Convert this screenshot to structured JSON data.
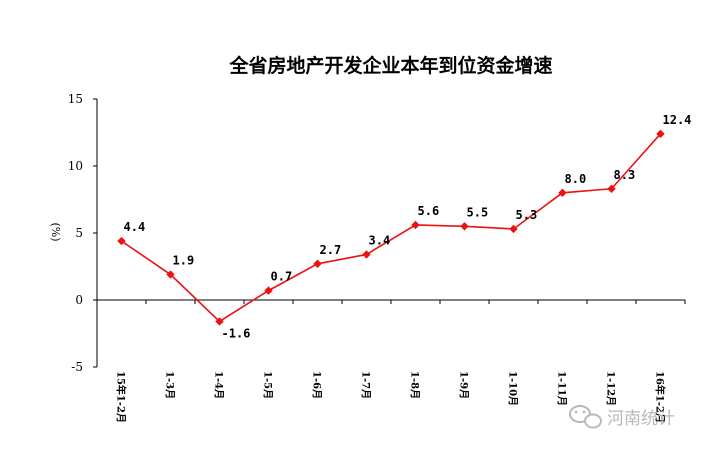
{
  "chart_data": {
    "type": "line",
    "title": "全省房地产开发企业本年到位资金增速",
    "xlabel": "",
    "ylabel": "(%)",
    "ylim": [
      -5,
      15
    ],
    "yticks": [
      "15",
      "10",
      "5",
      "0",
      "-5"
    ],
    "ytick_values": [
      15,
      10,
      5,
      0,
      -5
    ],
    "categories": [
      "15年1-2月",
      "1-3月",
      "1-4月",
      "1-5月",
      "1-6月",
      "1-7月",
      "1-8月",
      "1-9月",
      "1-10月",
      "1-11月",
      "1-12月",
      "16年1-2月"
    ],
    "series": [
      {
        "name": "",
        "values": [
          4.4,
          1.9,
          -1.6,
          0.7,
          2.7,
          3.4,
          5.6,
          5.5,
          5.3,
          8.0,
          8.3,
          12.4
        ],
        "labels": [
          "4.4",
          "1.9",
          "-1.6",
          "0.7",
          "2.7",
          "3.4",
          "5.6",
          "5.5",
          "5.3",
          "8.0",
          "8.3",
          "12.4"
        ],
        "color": "#ee1111"
      }
    ],
    "grid": false,
    "legend": "none"
  },
  "watermark": {
    "text": "河南统计",
    "icon": "wechat-icon",
    "color": "#b9b9b9"
  },
  "colors": {
    "axis": "#000000",
    "line": "#ee1111"
  }
}
